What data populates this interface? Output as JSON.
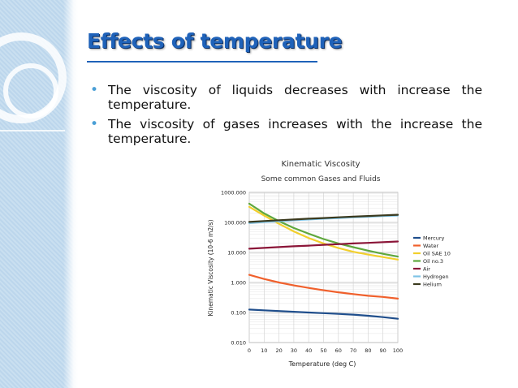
{
  "slide": {
    "title": "Effects of temperature",
    "bullets": [
      "The viscosity of liquids decreases with increase the temperature.",
      "The viscosity of gases increases with the increase the temperature."
    ]
  },
  "chart_data": {
    "type": "line",
    "title": "Kinematic Viscosity",
    "subtitle": "Some common Gases and Fluids",
    "xlabel": "Temperature (deg C)",
    "ylabel": "Kinematic Viscosity (10-6 m2/s)",
    "yscale": "log",
    "xlim": [
      0,
      100
    ],
    "ylim": [
      0.01,
      1000
    ],
    "x_ticks": [
      0,
      10,
      20,
      30,
      40,
      50,
      60,
      70,
      80,
      90,
      100
    ],
    "y_ticks": [
      0.01,
      0.1,
      1,
      10,
      100,
      1000
    ],
    "y_tick_labels": [
      "0.010",
      "0.100",
      "1.000",
      "10.000",
      "100.000",
      "1000.000"
    ],
    "grid": true,
    "legend_position": "right",
    "x": [
      0,
      10,
      20,
      30,
      40,
      50,
      60,
      70,
      80,
      90,
      100
    ],
    "series": [
      {
        "name": "Mercury",
        "color": "#1f4e8c",
        "values": [
          0.125,
          0.118,
          0.112,
          0.106,
          0.1,
          0.095,
          0.09,
          0.085,
          0.078,
          0.07,
          0.062
        ]
      },
      {
        "name": "Water",
        "color": "#f0602c",
        "values": [
          1.79,
          1.31,
          1.0,
          0.8,
          0.66,
          0.55,
          0.47,
          0.41,
          0.36,
          0.33,
          0.29
        ]
      },
      {
        "name": "Oil SAE 10",
        "color": "#f2cf2c",
        "values": [
          330,
          170,
          90,
          50,
          30,
          20,
          14,
          10.5,
          8.5,
          7,
          5.8
        ]
      },
      {
        "name": "Oil no.3",
        "color": "#5fa83e",
        "values": [
          420,
          200,
          110,
          65,
          42,
          28,
          20,
          15,
          11.5,
          9,
          7.3
        ]
      },
      {
        "name": "Air",
        "color": "#8b1538",
        "values": [
          13.3,
          14.2,
          15.1,
          16.0,
          16.9,
          17.9,
          18.9,
          19.9,
          20.9,
          22.0,
          23.1
        ]
      },
      {
        "name": "Hydrogen",
        "color": "#7ec3e6",
        "values": [
          95,
          103,
          110,
          118,
          125,
          133,
          140,
          148,
          155,
          163,
          170
        ]
      },
      {
        "name": "Helium",
        "color": "#3b3a1e",
        "values": [
          104,
          111,
          118,
          125,
          133,
          140,
          148,
          156,
          164,
          172,
          180
        ]
      }
    ]
  }
}
